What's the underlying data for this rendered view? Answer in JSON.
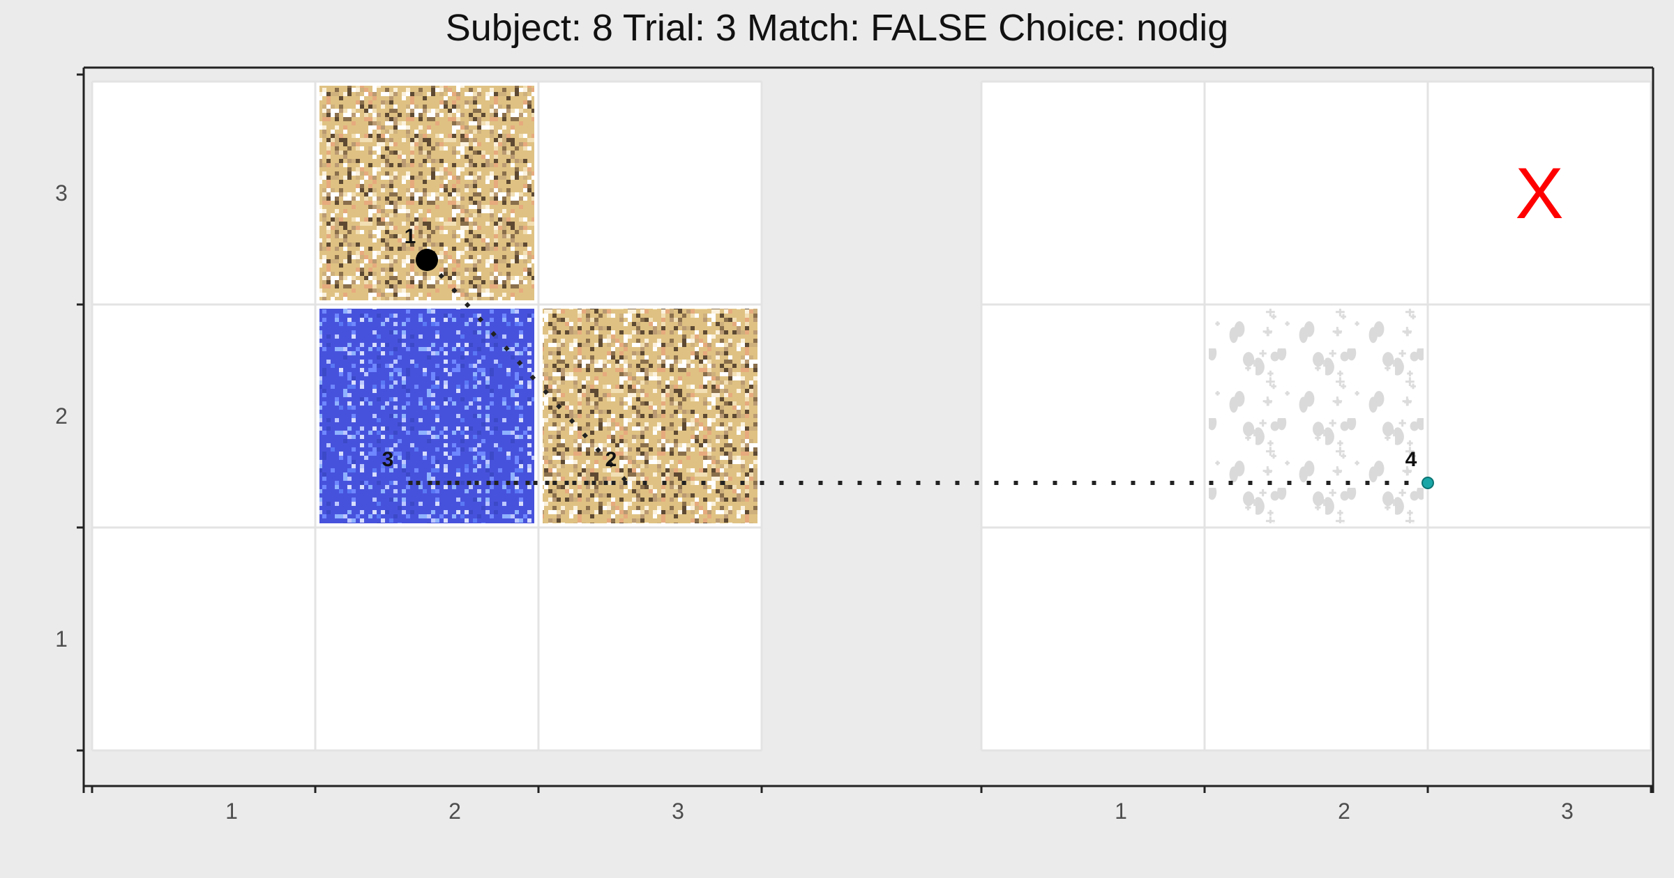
{
  "title": "Subject:  8  Trial:  3  Match: FALSE  Choice: nodig",
  "colors": {
    "panel": "#ffffff",
    "grid": "#e3e3e3",
    "background": "#ebebeb",
    "axis": "#222222",
    "path": "#222222",
    "start": "#000000",
    "end": "#1aa6a6",
    "outcome": "#ff0000",
    "sand": "#dfc283",
    "water": "#4752dc",
    "rock": "#ffffff"
  },
  "chart_data": {
    "type": "grid-path",
    "panels": [
      {
        "name": "left",
        "x_ticks": [
          "1",
          "2",
          "3"
        ],
        "y_ticks": [
          "1",
          "2",
          "3"
        ],
        "tiles": [
          {
            "col": 2,
            "row": 3,
            "texture": "sand"
          },
          {
            "col": 2,
            "row": 2,
            "texture": "water"
          },
          {
            "col": 3,
            "row": 2,
            "texture": "sand"
          }
        ],
        "marker": null
      },
      {
        "name": "right",
        "x_ticks": [
          "1",
          "2",
          "3"
        ],
        "y_ticks": [],
        "tiles": [
          {
            "col": 2,
            "row": 2,
            "texture": "rock"
          }
        ],
        "marker": {
          "col": 3,
          "row": 3,
          "text": "X"
        }
      }
    ],
    "path": [
      {
        "panel": 0,
        "x": 2.0,
        "y": 2.7,
        "label": "1",
        "kind": "start"
      },
      {
        "panel": 0,
        "x": 2.9,
        "y": 1.7,
        "label": "2",
        "kind": "step"
      },
      {
        "panel": 0,
        "x": 1.9,
        "y": 1.7,
        "label": "3",
        "kind": "step"
      },
      {
        "panel": 1,
        "x": 2.5,
        "y": 1.7,
        "label": "4",
        "kind": "end"
      }
    ]
  }
}
